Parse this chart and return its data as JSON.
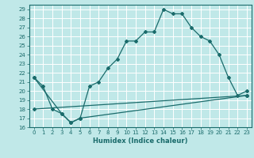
{
  "title": "",
  "xlabel": "Humidex (Indice chaleur)",
  "xlim": [
    -0.5,
    23.5
  ],
  "ylim": [
    16,
    29.5
  ],
  "yticks": [
    16,
    17,
    18,
    19,
    20,
    21,
    22,
    23,
    24,
    25,
    26,
    27,
    28,
    29
  ],
  "xticks": [
    0,
    1,
    2,
    3,
    4,
    5,
    6,
    7,
    8,
    9,
    10,
    11,
    12,
    13,
    14,
    15,
    16,
    17,
    18,
    19,
    20,
    21,
    22,
    23
  ],
  "bg_color": "#c0e8e8",
  "grid_color": "#ffffff",
  "line_color": "#1a6b6b",
  "line1_x": [
    0,
    1,
    2,
    3,
    4,
    5,
    6,
    7,
    8,
    9,
    10,
    11,
    12,
    13,
    14,
    15,
    16,
    17,
    18,
    19,
    20,
    21,
    22,
    23
  ],
  "line1_y": [
    21.5,
    20.5,
    18.0,
    17.5,
    16.5,
    17.0,
    20.5,
    21.0,
    22.5,
    23.5,
    25.5,
    25.5,
    26.5,
    26.5,
    29.0,
    28.5,
    28.5,
    27.0,
    26.0,
    25.5,
    24.0,
    21.5,
    19.5,
    20.0
  ],
  "line2_x": [
    0,
    3,
    4,
    5,
    23
  ],
  "line2_y": [
    21.5,
    17.5,
    16.5,
    17.0,
    19.5
  ],
  "line3_x": [
    0,
    23
  ],
  "line3_y": [
    18.0,
    19.5
  ]
}
